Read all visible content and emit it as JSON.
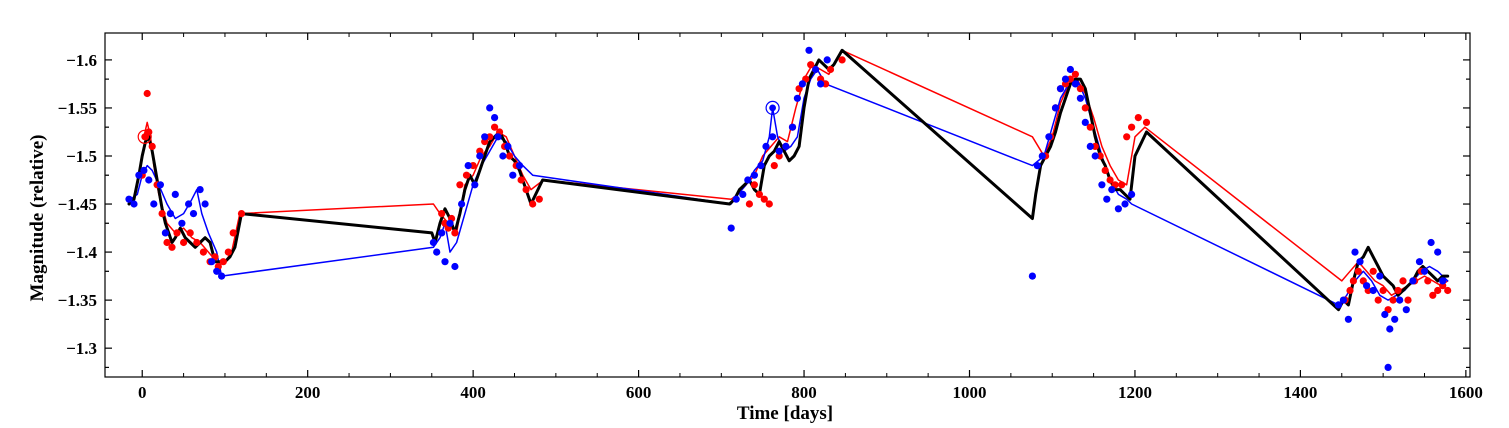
{
  "chart_data": {
    "type": "scatter",
    "title": "",
    "xlabel": "Time [days]",
    "ylabel": "Magnitude (relative)",
    "xlim": [
      -45,
      1605
    ],
    "ylim": [
      -1.27,
      -1.628
    ],
    "y_inverted": true,
    "x_ticks": [
      0,
      200,
      400,
      600,
      800,
      1000,
      1200,
      1400,
      1600
    ],
    "x_tick_labels": [
      "0",
      "200",
      "400",
      "600",
      "800",
      "1000",
      "1200",
      "1400",
      "1600"
    ],
    "y_ticks": [
      -1.3,
      -1.35,
      -1.4,
      -1.45,
      -1.5,
      -1.55,
      -1.6
    ],
    "y_tick_labels": [
      "−1.3",
      "−1.35",
      "−1.4",
      "−1.45",
      "−1.5",
      "−1.55",
      "−1.6"
    ],
    "grid": false,
    "colors": {
      "red": "#ff0000",
      "blue": "#0000ff",
      "black": "#000000"
    },
    "series": [
      {
        "name": "red points",
        "kind": "points",
        "color": "#ff0000",
        "x": [
          0,
          4,
          6,
          8,
          12,
          18,
          24,
          30,
          36,
          42,
          50,
          58,
          66,
          74,
          82,
          88,
          92,
          98,
          104,
          110,
          120,
          362,
          366,
          370,
          374,
          378,
          384,
          392,
          400,
          408,
          414,
          420,
          426,
          432,
          438,
          444,
          452,
          458,
          464,
          472,
          480,
          734,
          740,
          746,
          752,
          758,
          764,
          770,
          778,
          786,
          794,
          802,
          808,
          814,
          820,
          826,
          832,
          846,
          1092,
          1098,
          1104,
          1110,
          1116,
          1122,
          1128,
          1134,
          1140,
          1146,
          1152,
          1158,
          1164,
          1170,
          1176,
          1184,
          1190,
          1196,
          1204,
          1214,
          1454,
          1460,
          1464,
          1470,
          1476,
          1482,
          1488,
          1494,
          1500,
          1506,
          1512,
          1518,
          1524,
          1530,
          1538,
          1546,
          1554,
          1560,
          1566,
          1572,
          1578
        ],
        "y": [
          -1.48,
          -1.52,
          -1.565,
          -1.525,
          -1.51,
          -1.47,
          -1.44,
          -1.41,
          -1.405,
          -1.42,
          -1.41,
          -1.42,
          -1.41,
          -1.4,
          -1.39,
          -1.395,
          -1.385,
          -1.39,
          -1.4,
          -1.42,
          -1.44,
          -1.44,
          -1.43,
          -1.425,
          -1.435,
          -1.42,
          -1.47,
          -1.48,
          -1.49,
          -1.505,
          -1.515,
          -1.52,
          -1.53,
          -1.525,
          -1.51,
          -1.5,
          -1.49,
          -1.475,
          -1.465,
          -1.45,
          -1.455,
          -1.45,
          -1.47,
          -1.46,
          -1.455,
          -1.45,
          -1.49,
          -1.5,
          -1.51,
          -1.53,
          -1.57,
          -1.58,
          -1.595,
          -1.59,
          -1.58,
          -1.575,
          -1.59,
          -1.6,
          -1.5,
          -1.52,
          -1.55,
          -1.57,
          -1.575,
          -1.58,
          -1.585,
          -1.57,
          -1.55,
          -1.53,
          -1.51,
          -1.5,
          -1.485,
          -1.475,
          -1.47,
          -1.47,
          -1.52,
          -1.53,
          -1.54,
          -1.535,
          -1.35,
          -1.36,
          -1.37,
          -1.38,
          -1.37,
          -1.36,
          -1.38,
          -1.35,
          -1.36,
          -1.34,
          -1.35,
          -1.36,
          -1.37,
          -1.35,
          -1.37,
          -1.38,
          -1.37,
          -1.355,
          -1.36,
          -1.365,
          -1.36
        ],
        "marker": "filled-circle"
      },
      {
        "name": "blue points",
        "kind": "points",
        "color": "#0000ff",
        "x": [
          -16,
          -10,
          -4,
          2,
          8,
          14,
          22,
          28,
          34,
          40,
          48,
          56,
          62,
          70,
          76,
          84,
          90,
          96,
          352,
          356,
          362,
          366,
          372,
          378,
          386,
          394,
          402,
          408,
          414,
          420,
          426,
          430,
          436,
          442,
          448,
          456,
          712,
          718,
          726,
          732,
          740,
          748,
          754,
          762,
          770,
          778,
          786,
          792,
          798,
          806,
          814,
          820,
          828,
          1076,
          1082,
          1088,
          1096,
          1104,
          1110,
          1116,
          1122,
          1128,
          1134,
          1140,
          1146,
          1152,
          1160,
          1166,
          1172,
          1180,
          1188,
          1196,
          1446,
          1452,
          1458,
          1466,
          1472,
          1480,
          1488,
          1496,
          1502,
          1508,
          1514,
          1520,
          1528,
          1536,
          1544,
          1550,
          1558,
          1566,
          1572,
          1506
        ],
        "y": [
          -1.455,
          -1.45,
          -1.48,
          -1.485,
          -1.475,
          -1.45,
          -1.47,
          -1.42,
          -1.44,
          -1.46,
          -1.43,
          -1.45,
          -1.44,
          -1.465,
          -1.45,
          -1.39,
          -1.38,
          -1.375,
          -1.41,
          -1.4,
          -1.42,
          -1.39,
          -1.43,
          -1.385,
          -1.45,
          -1.49,
          -1.47,
          -1.5,
          -1.52,
          -1.55,
          -1.54,
          -1.52,
          -1.5,
          -1.51,
          -1.48,
          -1.49,
          -1.425,
          -1.455,
          -1.46,
          -1.475,
          -1.48,
          -1.49,
          -1.51,
          -1.52,
          -1.505,
          -1.51,
          -1.53,
          -1.56,
          -1.575,
          -1.61,
          -1.59,
          -1.575,
          -1.6,
          -1.375,
          -1.49,
          -1.5,
          -1.52,
          -1.55,
          -1.57,
          -1.58,
          -1.59,
          -1.575,
          -1.56,
          -1.535,
          -1.51,
          -1.5,
          -1.47,
          -1.455,
          -1.465,
          -1.445,
          -1.45,
          -1.46,
          -1.345,
          -1.35,
          -1.33,
          -1.4,
          -1.39,
          -1.365,
          -1.36,
          -1.375,
          -1.335,
          -1.32,
          -1.33,
          -1.35,
          -1.34,
          -1.37,
          -1.39,
          -1.38,
          -1.41,
          -1.4,
          -1.37,
          -1.28
        ],
        "marker": "filled-circle"
      },
      {
        "name": "red curve",
        "kind": "line",
        "color": "#ff0000",
        "x": [
          2,
          6,
          10,
          14,
          20,
          30,
          40,
          50,
          60,
          70,
          80,
          90,
          100,
          108,
          118,
          352,
          360,
          370,
          380,
          390,
          400,
          410,
          420,
          430,
          440,
          450,
          460,
          470,
          485,
          712,
          720,
          730,
          740,
          750,
          760,
          770,
          780,
          790,
          800,
          810,
          820,
          830,
          846,
          1076,
          1090,
          1100,
          1110,
          1120,
          1130,
          1140,
          1150,
          1160,
          1170,
          1180,
          1190,
          1200,
          1212,
          1450,
          1460,
          1470,
          1480,
          1490,
          1500,
          1510,
          1520,
          1530,
          1540,
          1550,
          1560,
          1570,
          1578
        ],
        "y": [
          -1.52,
          -1.535,
          -1.52,
          -1.49,
          -1.46,
          -1.43,
          -1.42,
          -1.425,
          -1.415,
          -1.41,
          -1.4,
          -1.39,
          -1.39,
          -1.4,
          -1.44,
          -1.45,
          -1.44,
          -1.43,
          -1.42,
          -1.47,
          -1.48,
          -1.5,
          -1.51,
          -1.525,
          -1.52,
          -1.5,
          -1.48,
          -1.465,
          -1.475,
          -1.455,
          -1.46,
          -1.47,
          -1.48,
          -1.5,
          -1.51,
          -1.52,
          -1.515,
          -1.55,
          -1.58,
          -1.595,
          -1.59,
          -1.585,
          -1.61,
          -1.52,
          -1.5,
          -1.52,
          -1.555,
          -1.575,
          -1.58,
          -1.565,
          -1.54,
          -1.51,
          -1.49,
          -1.475,
          -1.47,
          -1.52,
          -1.53,
          -1.37,
          -1.38,
          -1.39,
          -1.38,
          -1.37,
          -1.365,
          -1.355,
          -1.36,
          -1.365,
          -1.37,
          -1.375,
          -1.37,
          -1.365,
          -1.37
        ],
        "linewidth": 1.5
      },
      {
        "name": "blue curve",
        "kind": "line",
        "color": "#0000ff",
        "x": [
          -14,
          -6,
          0,
          6,
          12,
          20,
          30,
          40,
          50,
          60,
          66,
          72,
          80,
          90,
          96,
          352,
          360,
          366,
          372,
          380,
          390,
          400,
          410,
          420,
          430,
          440,
          450,
          460,
          472,
          712,
          720,
          730,
          740,
          750,
          758,
          762,
          768,
          776,
          784,
          792,
          800,
          808,
          816,
          826,
          1076,
          1090,
          1100,
          1110,
          1120,
          1130,
          1140,
          1150,
          1160,
          1170,
          1180,
          1190,
          1196,
          1446,
          1456,
          1466,
          1476,
          1486,
          1496,
          1506,
          1516,
          1526,
          1536,
          1546,
          1556,
          1566,
          1578
        ],
        "y": [
          -1.455,
          -1.46,
          -1.48,
          -1.49,
          -1.485,
          -1.47,
          -1.45,
          -1.435,
          -1.44,
          -1.455,
          -1.465,
          -1.44,
          -1.42,
          -1.4,
          -1.375,
          -1.405,
          -1.415,
          -1.43,
          -1.4,
          -1.41,
          -1.44,
          -1.47,
          -1.49,
          -1.505,
          -1.52,
          -1.515,
          -1.5,
          -1.49,
          -1.48,
          -1.45,
          -1.46,
          -1.47,
          -1.485,
          -1.495,
          -1.52,
          -1.55,
          -1.52,
          -1.505,
          -1.51,
          -1.52,
          -1.56,
          -1.58,
          -1.59,
          -1.575,
          -1.49,
          -1.5,
          -1.53,
          -1.56,
          -1.575,
          -1.58,
          -1.56,
          -1.53,
          -1.5,
          -1.475,
          -1.46,
          -1.455,
          -1.45,
          -1.345,
          -1.355,
          -1.37,
          -1.38,
          -1.37,
          -1.355,
          -1.35,
          -1.355,
          -1.36,
          -1.37,
          -1.38,
          -1.385,
          -1.38,
          -1.37
        ],
        "linewidth": 1.5
      },
      {
        "name": "black smoothed curve",
        "kind": "line",
        "color": "#000000",
        "x": [
          -16,
          -10,
          -4,
          0,
          4,
          8,
          12,
          16,
          20,
          24,
          28,
          32,
          36,
          40,
          46,
          52,
          58,
          64,
          70,
          76,
          82,
          88,
          94,
          100,
          106,
          112,
          120,
          350,
          354,
          360,
          366,
          372,
          378,
          384,
          390,
          396,
          402,
          408,
          414,
          420,
          426,
          432,
          438,
          444,
          450,
          456,
          462,
          470,
          484,
          710,
          716,
          722,
          728,
          734,
          740,
          746,
          752,
          758,
          764,
          770,
          776,
          782,
          788,
          794,
          800,
          806,
          812,
          818,
          824,
          830,
          836,
          846,
          1076,
          1080,
          1086,
          1092,
          1098,
          1104,
          1110,
          1116,
          1122,
          1128,
          1134,
          1140,
          1146,
          1152,
          1158,
          1164,
          1170,
          1176,
          1182,
          1188,
          1194,
          1200,
          1214,
          1446,
          1452,
          1458,
          1464,
          1470,
          1476,
          1482,
          1488,
          1494,
          1500,
          1506,
          1512,
          1518,
          1524,
          1530,
          1536,
          1542,
          1548,
          1554,
          1560,
          1566,
          1572,
          1578
        ],
        "y": [
          -1.45,
          -1.455,
          -1.48,
          -1.5,
          -1.515,
          -1.52,
          -1.505,
          -1.485,
          -1.465,
          -1.445,
          -1.43,
          -1.42,
          -1.41,
          -1.415,
          -1.425,
          -1.415,
          -1.41,
          -1.405,
          -1.41,
          -1.415,
          -1.41,
          -1.39,
          -1.39,
          -1.39,
          -1.395,
          -1.405,
          -1.44,
          -1.42,
          -1.41,
          -1.43,
          -1.445,
          -1.435,
          -1.42,
          -1.44,
          -1.465,
          -1.48,
          -1.47,
          -1.485,
          -1.5,
          -1.515,
          -1.52,
          -1.525,
          -1.515,
          -1.5,
          -1.495,
          -1.485,
          -1.47,
          -1.45,
          -1.475,
          -1.45,
          -1.455,
          -1.465,
          -1.47,
          -1.475,
          -1.465,
          -1.46,
          -1.49,
          -1.5,
          -1.505,
          -1.515,
          -1.505,
          -1.495,
          -1.5,
          -1.51,
          -1.55,
          -1.58,
          -1.59,
          -1.6,
          -1.595,
          -1.59,
          -1.595,
          -1.61,
          -1.435,
          -1.46,
          -1.49,
          -1.5,
          -1.51,
          -1.525,
          -1.545,
          -1.56,
          -1.575,
          -1.58,
          -1.58,
          -1.57,
          -1.545,
          -1.52,
          -1.5,
          -1.49,
          -1.475,
          -1.465,
          -1.465,
          -1.46,
          -1.455,
          -1.5,
          -1.525,
          -1.34,
          -1.35,
          -1.345,
          -1.37,
          -1.39,
          -1.395,
          -1.405,
          -1.395,
          -1.385,
          -1.375,
          -1.37,
          -1.365,
          -1.355,
          -1.36,
          -1.365,
          -1.37,
          -1.38,
          -1.385,
          -1.38,
          -1.375,
          -1.37,
          -1.375,
          -1.375
        ],
        "linewidth": 3
      },
      {
        "name": "circled points",
        "kind": "open-circle",
        "color": "#0000ff",
        "x": [
          762
        ],
        "y": [
          -1.55
        ],
        "marker": "open-circle"
      },
      {
        "name": "circled point red",
        "kind": "open-circle",
        "color": "#ff0000",
        "x": [
          3
        ],
        "y": [
          -1.52
        ],
        "marker": "open-circle"
      }
    ]
  }
}
